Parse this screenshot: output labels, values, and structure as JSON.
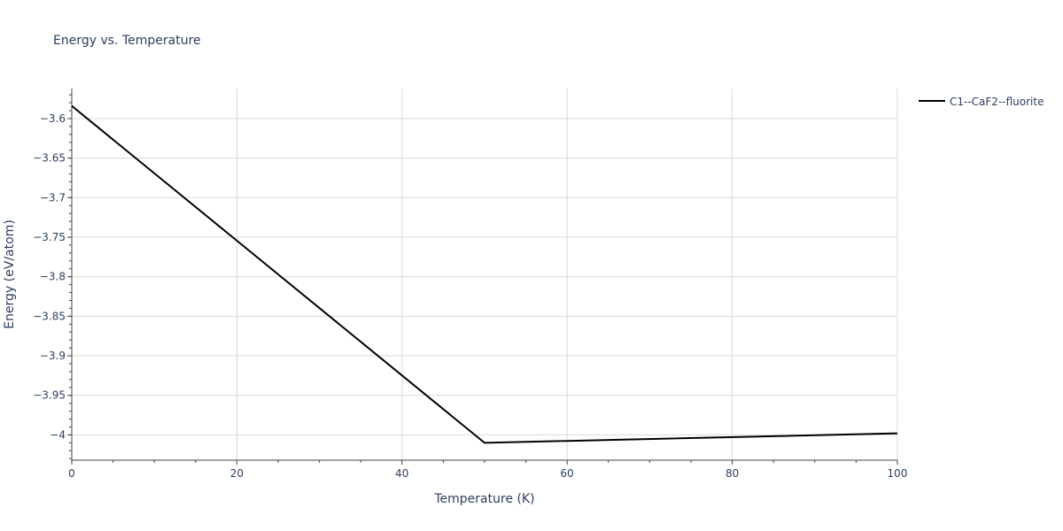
{
  "chart_data": {
    "type": "line",
    "title": "Energy vs. Temperature",
    "xlabel": "Temperature (K)",
    "ylabel": "Energy (eV/atom)",
    "xlim": [
      0,
      100
    ],
    "ylim": [
      -4.032,
      -3.562
    ],
    "x_ticks": [
      0,
      20,
      40,
      60,
      80,
      100
    ],
    "x_tick_labels": [
      "0",
      "20",
      "40",
      "60",
      "80",
      "100"
    ],
    "y_ticks": [
      -4,
      -3.95,
      -3.9,
      -3.85,
      -3.8,
      -3.75,
      -3.7,
      -3.65,
      -3.6
    ],
    "y_tick_labels": [
      "−4",
      "−3.95",
      "−3.9",
      "−3.85",
      "−3.8",
      "−3.75",
      "−3.7",
      "−3.65",
      "−3.6"
    ],
    "grid": true,
    "legend_position": "top-right",
    "series": [
      {
        "name": "C1--CaF2--fluorite",
        "color": "#000000",
        "x": [
          0,
          50,
          100
        ],
        "y": [
          -3.584,
          -4.01,
          -3.998
        ]
      }
    ]
  }
}
